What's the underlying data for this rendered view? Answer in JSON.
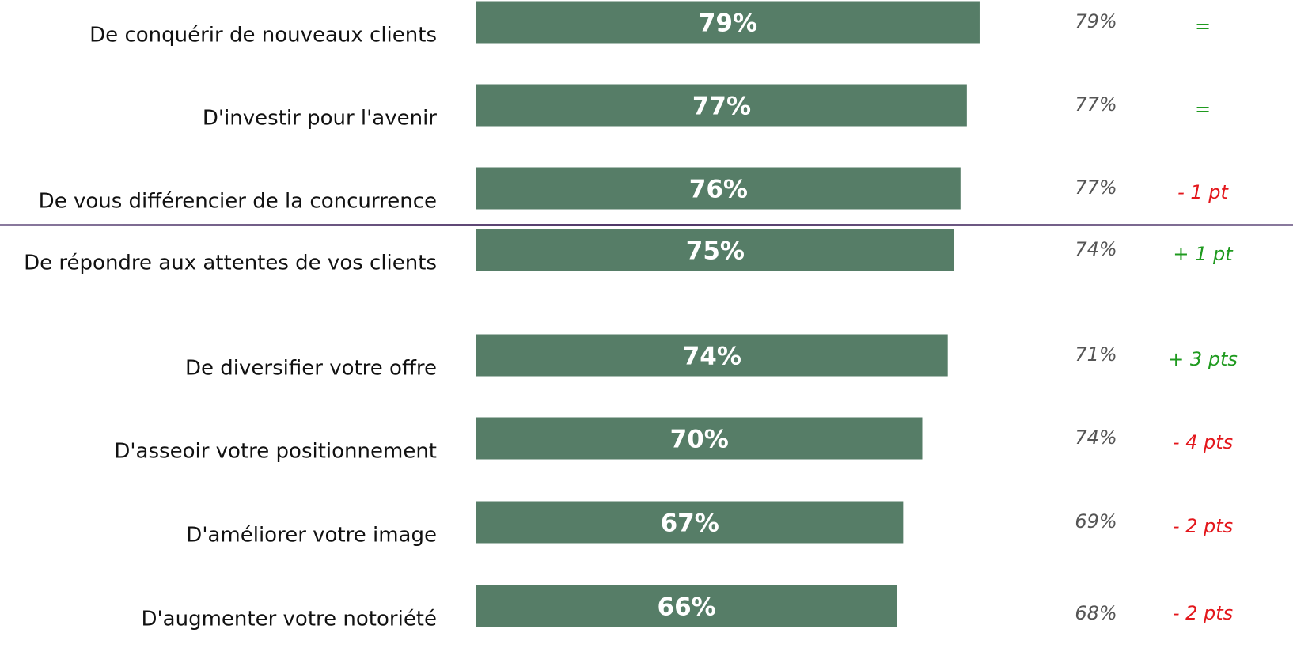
{
  "chart_data": {
    "type": "bar",
    "orientation": "horizontal",
    "categories": [
      "De conquérir de nouveaux clients",
      "D'investir pour l'avenir",
      "De vous différencier de la concurrence",
      "De répondre aux attentes de vos clients",
      "De diversifier votre offre",
      "D'asseoir votre positionnement",
      "D'améliorer votre image",
      "D'augmenter votre notoriété"
    ],
    "values": [
      79,
      77,
      76,
      75,
      74,
      70,
      67,
      66
    ],
    "value_labels": [
      "79%",
      "77%",
      "76%",
      "75%",
      "74%",
      "70%",
      "67%",
      "66%"
    ],
    "color": "#567d67",
    "xlim": [
      0,
      100
    ],
    "previous": {
      "values": [
        79,
        77,
        77,
        74,
        71,
        74,
        69,
        68
      ],
      "value_labels": [
        "79%",
        "77%",
        "77%",
        "74%",
        "71%",
        "74%",
        "69%",
        "68%"
      ],
      "color": "#555555"
    },
    "changes": {
      "labels": [
        "=",
        "=",
        "- 1 pt",
        "+ 1 pt",
        "+ 3 pts",
        "- 4 pts",
        "- 2 pts",
        "- 2 pts"
      ],
      "colors": [
        "#1f9a1f",
        "#1f9a1f",
        "#e3161b",
        "#1f9a1f",
        "#1f9a1f",
        "#e3161b",
        "#e3161b",
        "#e3161b"
      ]
    }
  }
}
